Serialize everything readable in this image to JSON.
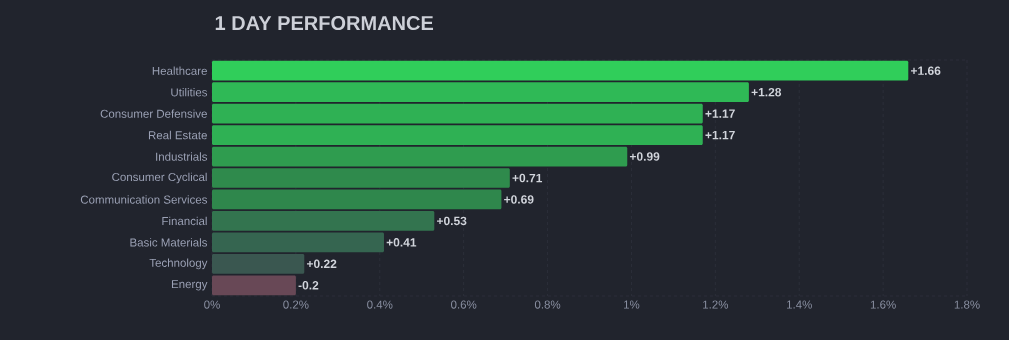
{
  "chart_data": {
    "type": "bar",
    "orientation": "horizontal",
    "title": "1 DAY PERFORMANCE",
    "categories": [
      "Healthcare",
      "Utilities",
      "Consumer Defensive",
      "Real Estate",
      "Industrials",
      "Consumer Cyclical",
      "Communication Services",
      "Financial",
      "Basic Materials",
      "Technology",
      "Energy"
    ],
    "values": [
      1.66,
      1.28,
      1.17,
      1.17,
      0.99,
      0.71,
      0.69,
      0.53,
      0.41,
      0.22,
      -0.2
    ],
    "base": [
      0,
      0,
      0,
      0,
      0,
      0,
      0,
      0,
      0,
      0,
      0.2
    ],
    "value_labels": [
      "+1.66",
      "+1.28",
      "+1.17",
      "+1.17",
      "+0.99",
      "+0.71",
      "+0.69",
      "+0.53",
      "+0.41",
      "+0.22",
      "-0.2"
    ],
    "colors": [
      "#30ce5a",
      "#2fb956",
      "#2fb154",
      "#2fb154",
      "#2f9c4f",
      "#2f8a4c",
      "#2f874c",
      "#33744f",
      "#356550",
      "#3a5750",
      "#684856"
    ],
    "xlim": [
      0,
      1.8
    ],
    "xticks": [
      {
        "value": 0,
        "label": "0%"
      },
      {
        "value": 0.2,
        "label": "0.2%"
      },
      {
        "value": 0.4,
        "label": "0.4%"
      },
      {
        "value": 0.6,
        "label": "0.6%"
      },
      {
        "value": 0.8,
        "label": "0.8%"
      },
      {
        "value": 1,
        "label": "1%"
      },
      {
        "value": 1.2,
        "label": "1.2%"
      },
      {
        "value": 1.4,
        "label": "1.4%"
      },
      {
        "value": 1.6,
        "label": "1.6%"
      },
      {
        "value": 1.8,
        "label": "1.8%"
      }
    ],
    "grid": "x"
  }
}
